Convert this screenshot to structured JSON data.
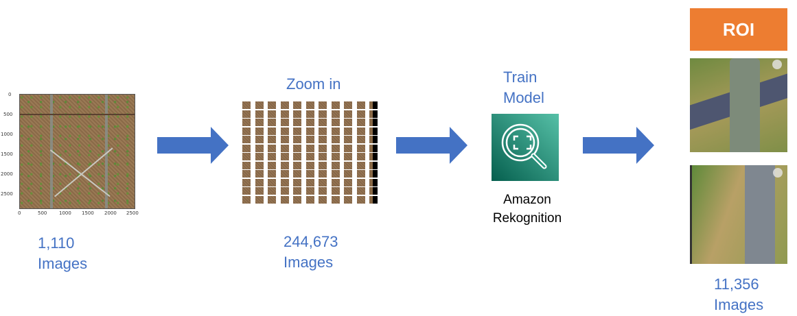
{
  "stage1": {
    "count": "1,110",
    "unit": "Images",
    "x_ticks": [
      "0",
      "500",
      "1000",
      "1500",
      "2000",
      "2500"
    ],
    "y_ticks": [
      "0",
      "500",
      "1000",
      "1500",
      "2000",
      "2500"
    ]
  },
  "stage2": {
    "title": "Zoom in",
    "count": "244,673",
    "unit": "Images",
    "grid_columns": 11,
    "grid_rows": 12
  },
  "stage3": {
    "title_line1": "Train",
    "title_line2": "Model",
    "service_line1": "Amazon",
    "service_line2": "Rekognition",
    "icon": "magnifier-focus-icon"
  },
  "stage4": {
    "badge": "ROI",
    "count": "11,356",
    "unit": "Images"
  },
  "colors": {
    "accent": "#4472C4",
    "roi": "#ED7D31",
    "rekognition_start": "#055F4E",
    "rekognition_end": "#56C0A7"
  }
}
